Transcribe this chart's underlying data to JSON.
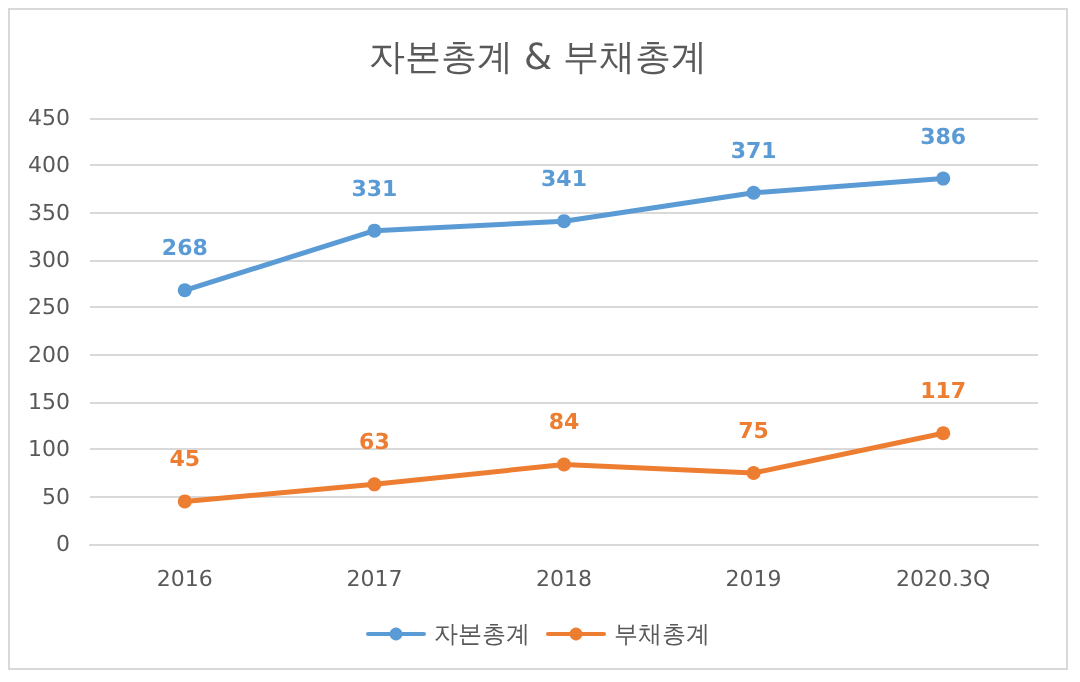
{
  "chart_data": {
    "type": "line",
    "title": "자본총계 & 부채총계",
    "categories": [
      "2016",
      "2017",
      "2018",
      "2019",
      "2020.3Q"
    ],
    "series": [
      {
        "name": "자본총계",
        "color": "#5b9bd5",
        "values": [
          268,
          331,
          341,
          371,
          386
        ]
      },
      {
        "name": "부채총계",
        "color": "#ed7d31",
        "values": [
          45,
          63,
          84,
          75,
          117
        ]
      }
    ],
    "ylim": [
      0,
      450
    ],
    "yticks": [
      0,
      50,
      100,
      150,
      200,
      250,
      300,
      350,
      400,
      450
    ],
    "grid": "y",
    "legend": "bottom",
    "marker": "circle",
    "line_style": "solid",
    "data_labels": true
  }
}
